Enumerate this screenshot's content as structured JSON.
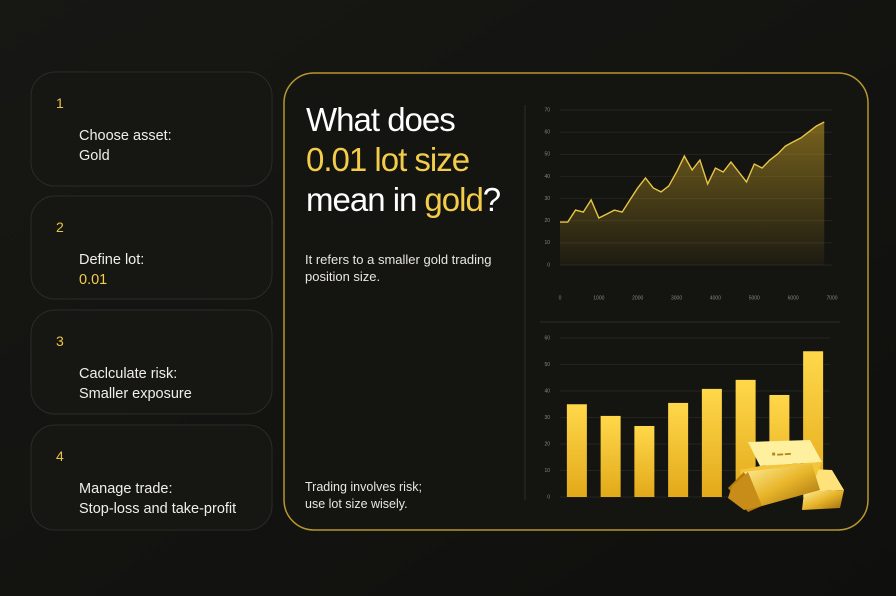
{
  "steps": [
    {
      "number": "1",
      "title": "Choose asset:",
      "value": "Gold"
    },
    {
      "number": "2",
      "title": "Define lot:",
      "value": "0.01"
    },
    {
      "number": "3",
      "title": "Caclculate risk:",
      "value": "Smaller exposure"
    },
    {
      "number": "4",
      "title": "Manage trade:",
      "value": "Stop-loss and take-profit"
    }
  ],
  "heading": {
    "line1": "What does",
    "line2": "0.01 lot size",
    "line3a": "mean in",
    "line3b": "gold",
    "line3c": "?"
  },
  "description": {
    "line1": "It refers to a smaller gold trading",
    "line2": "position size."
  },
  "disclaimer": {
    "line1": "Trading involves risk;",
    "line2": "use lot size wisely."
  },
  "chart_data": [
    {
      "type": "line",
      "color": "#e8c547",
      "x": [
        0,
        200,
        400,
        600,
        800,
        1000,
        1200,
        1400,
        1600,
        1800,
        2000,
        2200,
        2400,
        2600,
        2800,
        3000,
        3200,
        3400,
        3600,
        3800,
        4000,
        4200,
        4400,
        4600,
        4800,
        5000,
        5200,
        5400,
        5600,
        5800,
        6000,
        6200,
        6400,
        6600,
        6800
      ],
      "values": [
        19.4,
        19.4,
        24.8,
        23.9,
        29.4,
        21.2,
        23,
        24.8,
        23.9,
        29.4,
        34.8,
        39.3,
        34.8,
        33,
        35.7,
        42,
        49.2,
        42.9,
        47.4,
        36.6,
        43.8,
        42,
        46.5,
        42,
        37.5,
        45.6,
        43.8,
        47.4,
        50.1,
        53.7,
        55.6,
        57.4,
        60.1,
        62.8,
        64.6
      ],
      "xlim": [
        0,
        7000
      ],
      "xticks": [
        0,
        1000,
        2000,
        3000,
        4000,
        5000,
        6000,
        7000
      ],
      "ylim": [
        0,
        70
      ],
      "yticks": [
        0,
        10,
        20,
        30,
        40,
        50,
        60,
        70
      ],
      "grid": true
    },
    {
      "type": "bar",
      "color": "#f2c230",
      "values": [
        35,
        30.6,
        26.8,
        35.5,
        40.8,
        44.2,
        38.5,
        55
      ],
      "ylim": [
        0,
        60
      ],
      "yticks": [
        0,
        10,
        20,
        30,
        40,
        50,
        60
      ],
      "grid": true
    }
  ]
}
